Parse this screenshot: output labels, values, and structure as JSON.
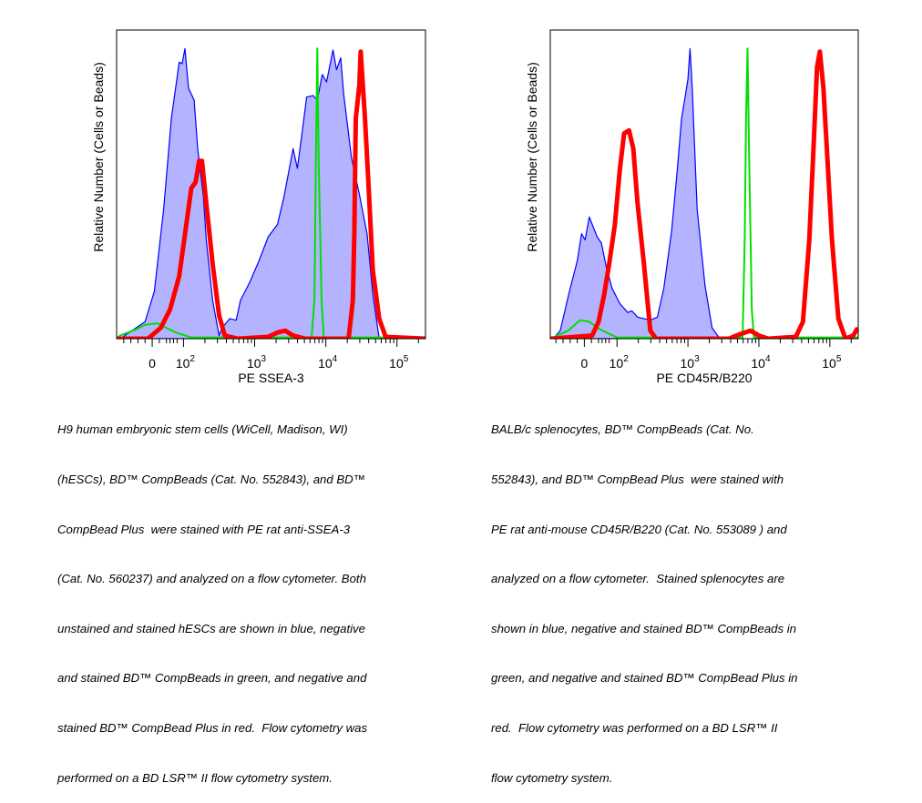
{
  "colors": {
    "unstained_fill": "#b3b3ff",
    "cells": "#0000ff",
    "compbeads": "#00e000",
    "compbead_plus": "#ff0000",
    "axis": "#000000"
  },
  "chart_data": [
    {
      "type": "line",
      "title": "",
      "xlabel": "PE SSEA-3",
      "ylabel": "Relative Number (Cells or Beads)",
      "x_scale": "biexponential, display units in decades (2 = 10^2)",
      "xlim": [
        1.06,
        5.4
      ],
      "ylim": [
        0,
        100
      ],
      "grid": false,
      "ticks": [
        {
          "pos": 1.56,
          "label": "0",
          "exp": ""
        },
        {
          "pos": 2,
          "label": "10",
          "exp": "2"
        },
        {
          "pos": 3,
          "label": "10",
          "exp": "3"
        },
        {
          "pos": 4,
          "label": "10",
          "exp": "4"
        },
        {
          "pos": 5,
          "label": "10",
          "exp": "5"
        }
      ],
      "series": [
        {
          "name": "hESCs (blue)",
          "style": "filled",
          "points": [
            [
              1.11,
              0
            ],
            [
              1.46,
              5.5
            ],
            [
              1.59,
              15.3
            ],
            [
              1.72,
              41.9
            ],
            [
              1.83,
              71.4
            ],
            [
              1.94,
              89.6
            ],
            [
              1.98,
              89.1
            ],
            [
              2.02,
              94
            ],
            [
              2.07,
              81.2
            ],
            [
              2.15,
              77.3
            ],
            [
              2.2,
              61.6
            ],
            [
              2.28,
              45.8
            ],
            [
              2.32,
              32.1
            ],
            [
              2.41,
              12.4
            ],
            [
              2.5,
              1
            ],
            [
              2.54,
              3.5
            ],
            [
              2.65,
              6.5
            ],
            [
              2.74,
              6
            ],
            [
              2.8,
              12.4
            ],
            [
              2.93,
              18.3
            ],
            [
              3.06,
              25.2
            ],
            [
              3.19,
              33
            ],
            [
              3.32,
              37
            ],
            [
              3.41,
              45.8
            ],
            [
              3.54,
              61.6
            ],
            [
              3.6,
              55.2
            ],
            [
              3.67,
              67.5
            ],
            [
              3.73,
              78.3
            ],
            [
              3.82,
              78.8
            ],
            [
              3.88,
              77.3
            ],
            [
              3.95,
              85.6
            ],
            [
              4.01,
              83.2
            ],
            [
              4.1,
              93.5
            ],
            [
              4.15,
              87.1
            ],
            [
              4.21,
              91
            ],
            [
              4.25,
              79.3
            ],
            [
              4.36,
              58.6
            ],
            [
              4.47,
              46.8
            ],
            [
              4.58,
              34
            ],
            [
              4.66,
              14.4
            ],
            [
              4.75,
              0
            ]
          ]
        },
        {
          "name": "BD CompBeads (green)",
          "style": "thin",
          "points": [
            [
              1.08,
              0.5
            ],
            [
              1.11,
              1
            ],
            [
              1.33,
              3
            ],
            [
              1.46,
              4.5
            ],
            [
              1.63,
              5
            ],
            [
              1.76,
              3.5
            ],
            [
              1.89,
              2
            ],
            [
              2.11,
              0.4
            ],
            [
              3.8,
              0.4
            ],
            [
              3.84,
              12.4
            ],
            [
              3.86,
              56.6
            ],
            [
              3.88,
              94
            ],
            [
              3.9,
              56.6
            ],
            [
              3.94,
              12.4
            ],
            [
              3.97,
              0.4
            ],
            [
              5.4,
              0.4
            ]
          ]
        },
        {
          "name": "BD CompBead Plus (red)",
          "style": "thick",
          "points": [
            [
              1.08,
              0
            ],
            [
              1.5,
              0
            ],
            [
              1.68,
              3.5
            ],
            [
              1.81,
              9.4
            ],
            [
              1.94,
              20.3
            ],
            [
              2.04,
              37
            ],
            [
              2.11,
              48.8
            ],
            [
              2.17,
              50.7
            ],
            [
              2.22,
              57.6
            ],
            [
              2.26,
              57.6
            ],
            [
              2.32,
              43.9
            ],
            [
              2.41,
              24.2
            ],
            [
              2.5,
              7.5
            ],
            [
              2.58,
              1
            ],
            [
              2.76,
              0
            ],
            [
              3.19,
              0.6
            ],
            [
              3.32,
              2
            ],
            [
              3.43,
              2.6
            ],
            [
              3.54,
              1
            ],
            [
              3.71,
              0
            ],
            [
              4.32,
              0
            ],
            [
              4.38,
              12.4
            ],
            [
              4.4,
              34
            ],
            [
              4.42,
              71.4
            ],
            [
              4.47,
              82
            ],
            [
              4.49,
              93
            ],
            [
              4.52,
              82
            ],
            [
              4.55,
              71.4
            ],
            [
              4.6,
              49.8
            ],
            [
              4.66,
              22.2
            ],
            [
              4.75,
              6.5
            ],
            [
              4.84,
              0.6
            ],
            [
              5.4,
              0
            ]
          ]
        }
      ]
    },
    {
      "type": "line",
      "title": "",
      "xlabel": "PE CD45R/B220",
      "ylabel": "Relative Number (Cells or Beads)",
      "x_scale": "biexponential, display units in decades (2 = 10^2)",
      "xlim": [
        1.06,
        5.4
      ],
      "ylim": [
        0,
        100
      ],
      "grid": false,
      "ticks": [
        {
          "pos": 1.54,
          "label": "0",
          "exp": ""
        },
        {
          "pos": 2,
          "label": "10",
          "exp": "2"
        },
        {
          "pos": 3,
          "label": "10",
          "exp": "3"
        },
        {
          "pos": 4,
          "label": "10",
          "exp": "4"
        },
        {
          "pos": 5,
          "label": "10",
          "exp": "5"
        }
      ],
      "series": [
        {
          "name": "splenocytes (blue)",
          "style": "filled",
          "points": [
            [
              1.1,
              0
            ],
            [
              1.2,
              2.6
            ],
            [
              1.33,
              15.3
            ],
            [
              1.44,
              25.2
            ],
            [
              1.5,
              34
            ],
            [
              1.55,
              32
            ],
            [
              1.61,
              39.4
            ],
            [
              1.72,
              33
            ],
            [
              1.78,
              31
            ],
            [
              1.85,
              23.2
            ],
            [
              1.93,
              16.3
            ],
            [
              2.04,
              11.4
            ],
            [
              2.15,
              8.5
            ],
            [
              2.21,
              9
            ],
            [
              2.29,
              7
            ],
            [
              2.47,
              6
            ],
            [
              2.57,
              7
            ],
            [
              2.66,
              16.3
            ],
            [
              2.77,
              35
            ],
            [
              2.85,
              54.7
            ],
            [
              2.91,
              71.4
            ],
            [
              2.96,
              78.3
            ],
            [
              3.0,
              84.2
            ],
            [
              3.03,
              94
            ],
            [
              3.06,
              81.2
            ],
            [
              3.13,
              41.9
            ],
            [
              3.24,
              17.3
            ],
            [
              3.34,
              3.5
            ],
            [
              3.45,
              0
            ]
          ]
        },
        {
          "name": "BD CompBeads (green)",
          "style": "thin",
          "points": [
            [
              1.08,
              0.4
            ],
            [
              1.1,
              0.4
            ],
            [
              1.31,
              2.6
            ],
            [
              1.48,
              6
            ],
            [
              1.61,
              5.5
            ],
            [
              1.76,
              3
            ],
            [
              2.0,
              0.4
            ],
            [
              3.77,
              0.4
            ],
            [
              3.8,
              32
            ],
            [
              3.82,
              71.4
            ],
            [
              3.84,
              94
            ],
            [
              3.86,
              61.6
            ],
            [
              3.9,
              9.4
            ],
            [
              3.93,
              0.4
            ],
            [
              5.4,
              0.4
            ]
          ]
        },
        {
          "name": "BD CompBead Plus (red)",
          "style": "thick",
          "points": [
            [
              1.08,
              0
            ],
            [
              1.65,
              1
            ],
            [
              1.74,
              5.5
            ],
            [
              1.82,
              14.4
            ],
            [
              1.89,
              24.2
            ],
            [
              1.97,
              37
            ],
            [
              2.04,
              54.7
            ],
            [
              2.1,
              66.5
            ],
            [
              2.17,
              67.5
            ],
            [
              2.23,
              61.6
            ],
            [
              2.29,
              43.9
            ],
            [
              2.38,
              24.2
            ],
            [
              2.47,
              2.6
            ],
            [
              2.55,
              0
            ],
            [
              3.58,
              0
            ],
            [
              3.75,
              1.6
            ],
            [
              3.88,
              2.6
            ],
            [
              4.0,
              1
            ],
            [
              4.13,
              0
            ],
            [
              4.52,
              0.6
            ],
            [
              4.62,
              5.5
            ],
            [
              4.71,
              32
            ],
            [
              4.77,
              61.6
            ],
            [
              4.82,
              88
            ],
            [
              4.86,
              93
            ],
            [
              4.91,
              81.2
            ],
            [
              4.97,
              56.6
            ],
            [
              5.03,
              32
            ],
            [
              5.12,
              6.5
            ],
            [
              5.22,
              0
            ],
            [
              5.33,
              1
            ],
            [
              5.38,
              3
            ]
          ]
        }
      ]
    }
  ],
  "captions": [
    {
      "lines": [
        "H9 human embryonic stem cells (WiCell, Madison, WI)",
        "(hESCs), BD™ CompBeads (Cat. No. 552843), and BD™",
        "CompBead Plus  were stained with PE rat anti-SSEA-3",
        "(Cat. No. 560237) and analyzed on a flow cytometer. Both",
        "unstained and stained hESCs are shown in blue, negative",
        "and stained BD™ CompBeads in green, and negative and",
        "stained BD™ CompBead Plus in red.  Flow cytometry was",
        "performed on a BD LSR™ II flow cytometry system."
      ]
    },
    {
      "lines": [
        "BALB/c splenocytes, BD™ CompBeads (Cat. No.",
        "552843), and BD™ CompBead Plus  were stained with",
        "PE rat anti-mouse CD45R/B220 (Cat. No. 553089 ) and",
        "analyzed on a flow cytometer.  Stained splenocytes are",
        "shown in blue, negative and stained BD™ CompBeads in",
        "green, and negative and stained BD™ CompBead Plus in",
        "red.  Flow cytometry was performed on a BD LSR™ II",
        "flow cytometry system."
      ]
    }
  ]
}
